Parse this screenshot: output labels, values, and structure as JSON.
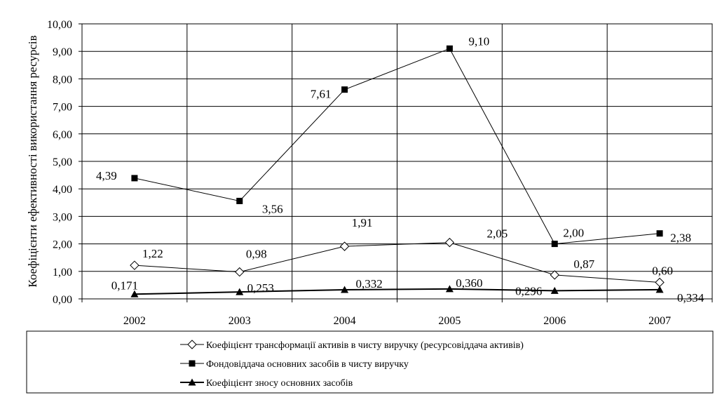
{
  "chart_data": {
    "type": "line",
    "title": "",
    "xlabel": "",
    "ylabel": "Коефіцієнти ефективності використання ресурсів",
    "ylim": [
      0,
      10
    ],
    "ytick_step": 1,
    "ytick_labels": [
      "0,00",
      "1,00",
      "2,00",
      "3,00",
      "4,00",
      "5,00",
      "6,00",
      "7,00",
      "8,00",
      "9,00",
      "10,00"
    ],
    "categories": [
      "2002",
      "2003",
      "2004",
      "2005",
      "2006",
      "2007"
    ],
    "grid": true,
    "legend_position": "bottom",
    "series": [
      {
        "name": "Коефіцієнт трансформації активів в чисту виручку (ресурсовіддача активів)",
        "marker": "diamond-open",
        "values": [
          1.22,
          0.98,
          1.91,
          2.05,
          0.87,
          0.6
        ],
        "labels": [
          "1,22",
          "0,98",
          "1,91",
          "2,05",
          "0,87",
          "0,60"
        ]
      },
      {
        "name": "Фондовіддача основних засобів в чисту виручку",
        "marker": "square-filled",
        "values": [
          4.39,
          3.56,
          7.61,
          9.1,
          2.0,
          2.38
        ],
        "labels": [
          "4,39",
          "3,56",
          "7,61",
          "9,10",
          "2,00",
          "2,38"
        ]
      },
      {
        "name": "Коефіцієнт зносу основних засобів",
        "marker": "triangle-filled",
        "values": [
          0.171,
          0.253,
          0.332,
          0.36,
          0.296,
          0.334
        ],
        "labels": [
          "0,171",
          "0,253",
          "0,332",
          "0,360",
          "0,296",
          "0,334"
        ]
      }
    ]
  }
}
